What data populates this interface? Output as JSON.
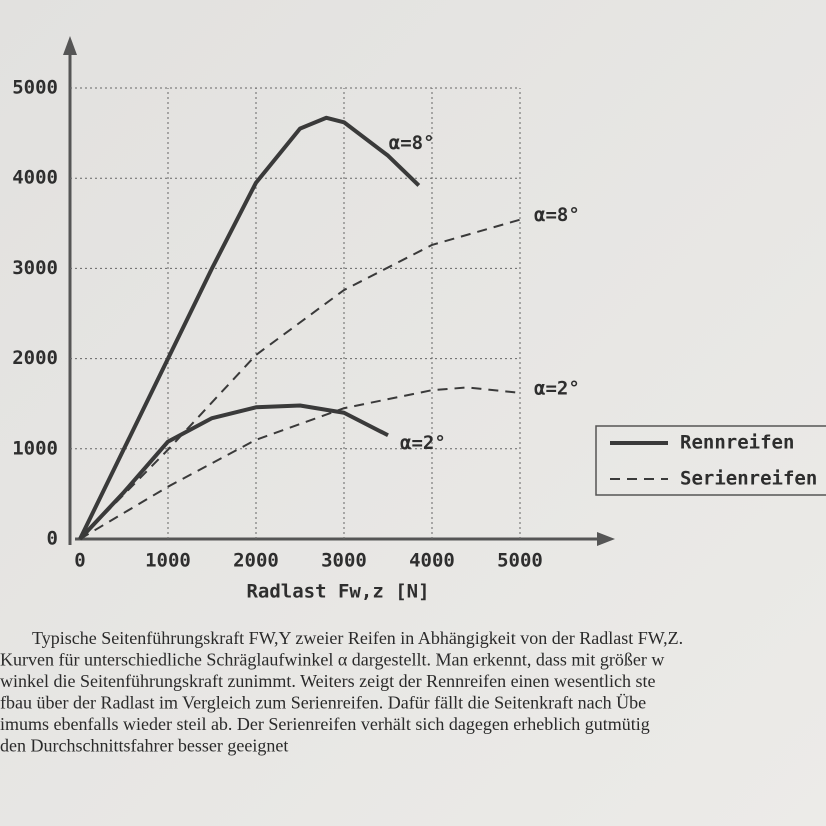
{
  "chart_data": {
    "type": "line",
    "x_label": "Radlast Fw,z [N]",
    "xlim": [
      0,
      5000
    ],
    "xticks": [
      0,
      1000,
      2000,
      3000,
      4000,
      5000
    ],
    "ylim": [
      0,
      5000
    ],
    "yticks": [
      0,
      1000,
      2000,
      3000,
      4000,
      5000
    ],
    "grid": true,
    "legend_position": "right",
    "legend": [
      {
        "name": "Rennreifen",
        "line": "solid"
      },
      {
        "name": "Serienreifen",
        "line": "dashed"
      }
    ],
    "color": "#3a3a3a",
    "series": [
      {
        "label": "α=8°",
        "line": "solid",
        "x": [
          0,
          500,
          1000,
          1500,
          2000,
          2500,
          2800,
          3000,
          3500,
          3850
        ],
        "values": [
          0,
          1000,
          2000,
          3000,
          3950,
          4550,
          4670,
          4620,
          4250,
          3920
        ]
      },
      {
        "label": "α=2°",
        "line": "solid",
        "x": [
          0,
          500,
          1000,
          1500,
          2000,
          2500,
          3000,
          3500
        ],
        "values": [
          0,
          520,
          1080,
          1340,
          1460,
          1480,
          1400,
          1150
        ]
      },
      {
        "label": "α=8°",
        "line": "dashed",
        "x": [
          0,
          1000,
          2000,
          3000,
          4000,
          5000
        ],
        "values": [
          0,
          990,
          2040,
          2760,
          3260,
          3540
        ]
      },
      {
        "label": "α=2°",
        "line": "dashed",
        "x": [
          0,
          1000,
          2000,
          3000,
          4000,
          4400,
          5000
        ],
        "values": [
          0,
          580,
          1100,
          1450,
          1650,
          1680,
          1620
        ]
      }
    ]
  },
  "caption": [
    "Typische Seitenführungskraft FW,Y zweier Reifen in Abhängigkeit von der Radlast FW,Z.",
    "Kurven für unterschiedliche Schräglaufwinkel α dargestellt. Man erkennt, dass mit größer w",
    "winkel die Seitenführungskraft zunimmt. Weiters zeigt der Rennreifen einen wesentlich ste",
    "fbau über der Radlast im Vergleich zum Serienreifen. Dafür fällt die Seitenkraft nach Übe",
    "imums ebenfalls wieder steil ab. Der Serienreifen verhält sich dagegen erheblich gutmütig",
    "den Durchschnittsfahrer besser geeignet"
  ]
}
